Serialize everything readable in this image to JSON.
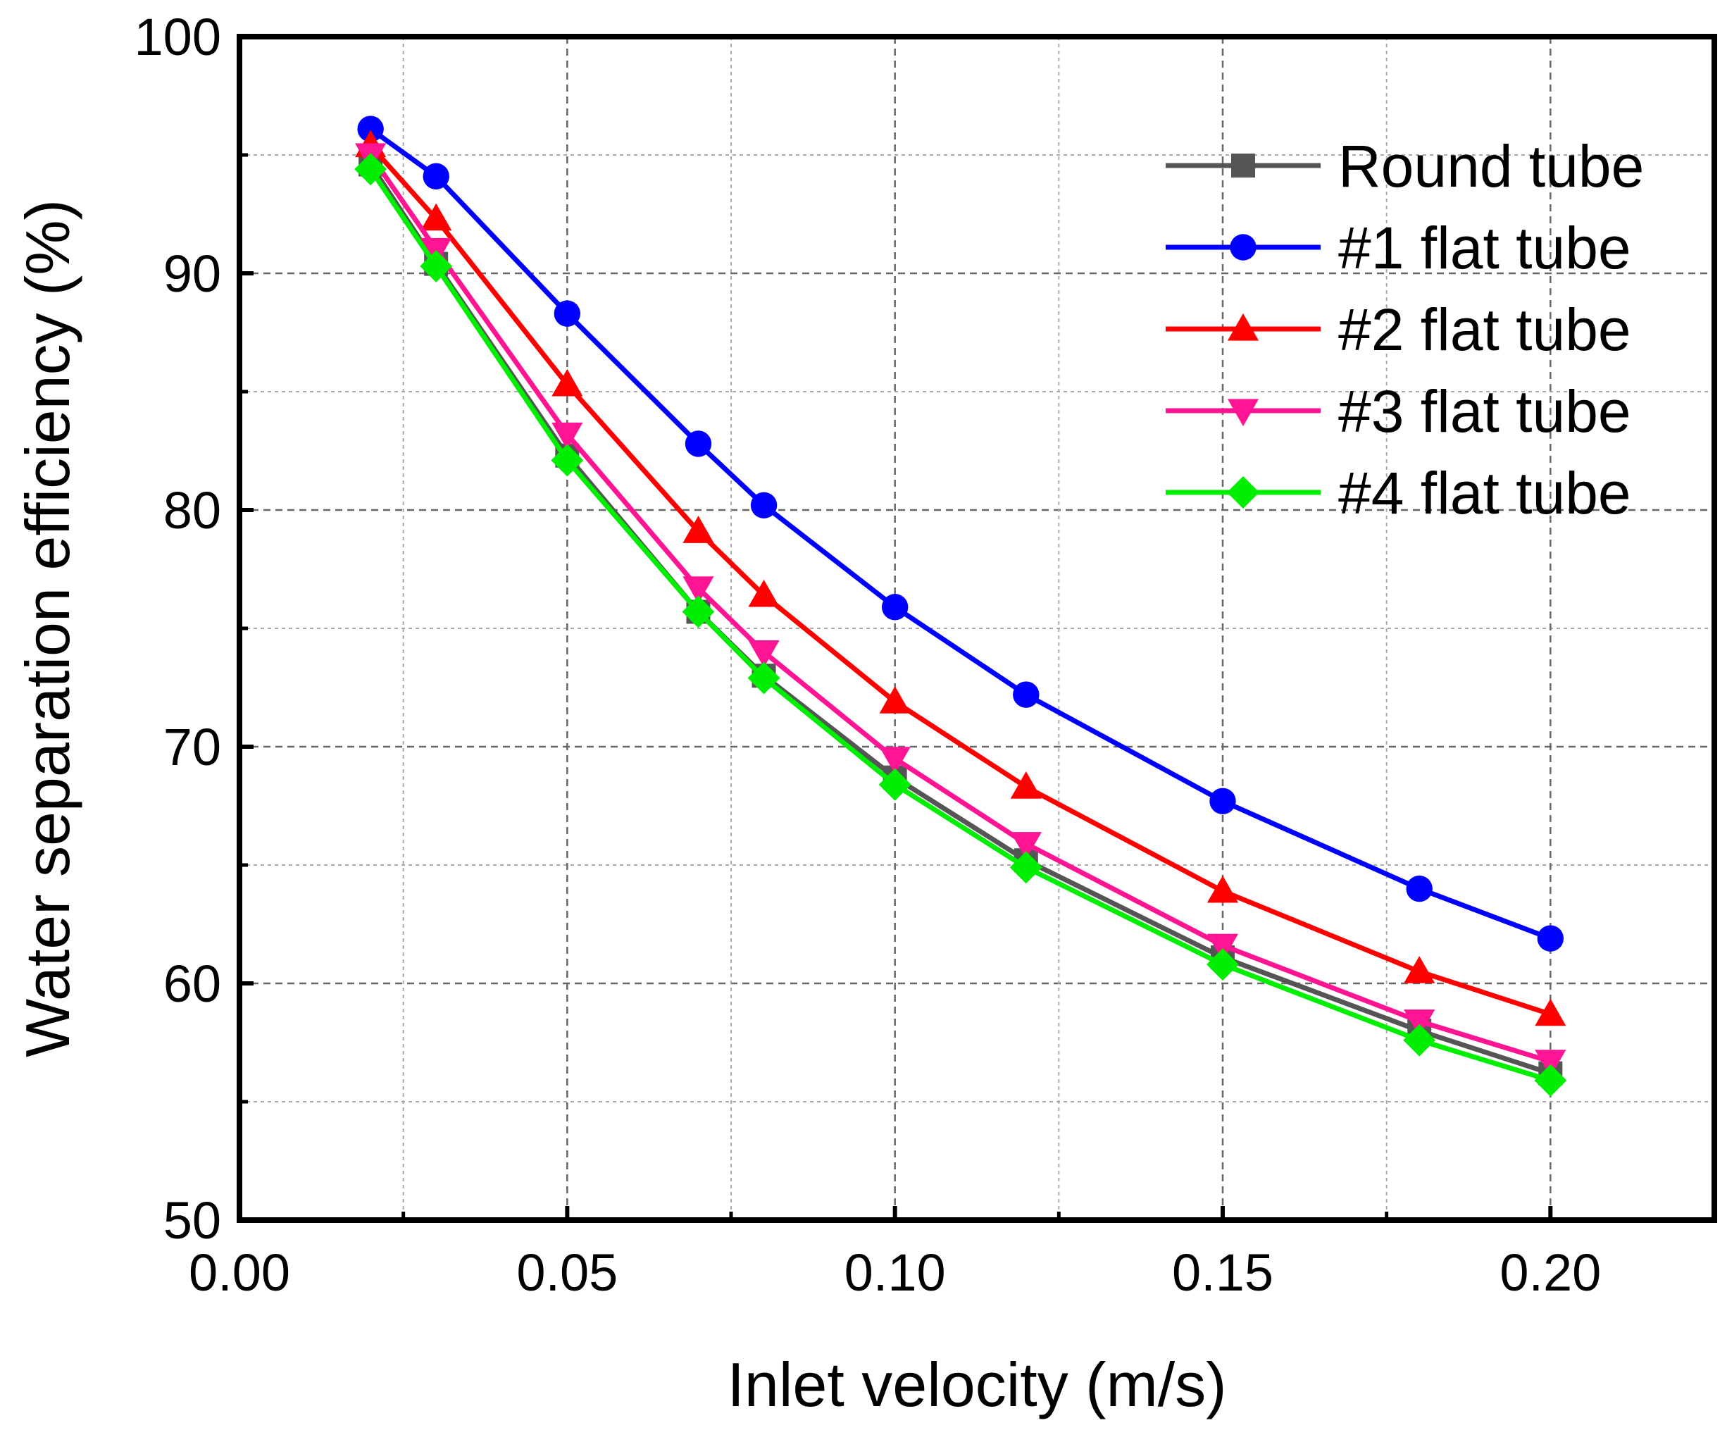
{
  "chart_data": {
    "type": "line",
    "xlabel": "Inlet velocity (m/s)",
    "ylabel": "Water separation efficiency (%)",
    "xlim": [
      0.0,
      0.225
    ],
    "ylim": [
      50,
      100
    ],
    "xticks": [
      "0.00",
      "0.05",
      "0.10",
      "0.15",
      "0.20"
    ],
    "yticks": [
      "50",
      "60",
      "70",
      "80",
      "90",
      "100"
    ],
    "grid": true,
    "legend_position": "top-right",
    "x": [
      0.02,
      0.03,
      0.05,
      0.07,
      0.08,
      0.1,
      0.12,
      0.15,
      0.18,
      0.2
    ],
    "series": [
      {
        "name": "Round tube",
        "color": "#555555",
        "marker": "square",
        "values": [
          94.6,
          90.4,
          82.3,
          75.7,
          73.0,
          68.7,
          65.2,
          61.1,
          58.0,
          56.2
        ]
      },
      {
        "name": "#1 flat tube",
        "color": "#0000ff",
        "marker": "circle",
        "values": [
          96.1,
          94.1,
          88.3,
          82.8,
          80.2,
          75.9,
          72.2,
          67.7,
          64.0,
          61.9
        ]
      },
      {
        "name": "#2 flat tube",
        "color": "#ff0000",
        "marker": "triangle-up",
        "values": [
          95.4,
          92.3,
          85.3,
          79.1,
          76.4,
          71.9,
          68.3,
          63.9,
          60.5,
          58.7
        ]
      },
      {
        "name": "#3 flat tube",
        "color": "#ff1493",
        "marker": "triangle-down",
        "values": [
          95.0,
          91.0,
          83.2,
          76.7,
          74.0,
          69.5,
          65.9,
          61.6,
          58.4,
          56.7
        ]
      },
      {
        "name": "#4 flat tube",
        "color": "#00ee00",
        "marker": "diamond",
        "values": [
          94.4,
          90.3,
          82.1,
          75.7,
          72.9,
          68.4,
          64.9,
          60.8,
          57.6,
          55.9
        ]
      }
    ]
  }
}
